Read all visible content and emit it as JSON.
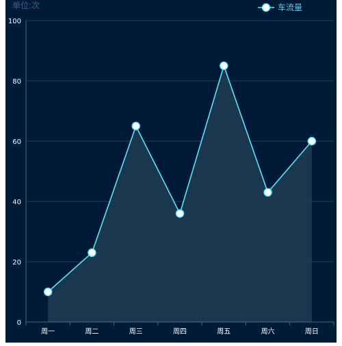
{
  "chart_data": {
    "type": "area",
    "unit_label": "单位:次",
    "categories": [
      "周一",
      "周二",
      "周三",
      "周四",
      "周五",
      "周六",
      "周日"
    ],
    "series": [
      {
        "name": "车流量",
        "values": [
          10,
          23,
          65,
          36,
          85,
          43,
          60
        ]
      }
    ],
    "ylim": [
      0,
      100
    ],
    "yticks": [
      0,
      20,
      40,
      60,
      80,
      100
    ],
    "grid": true,
    "legend": "top-right",
    "colors": {
      "background": "#001b37",
      "line": "#5ee3ff",
      "area": "#1a3a50",
      "marker_fill": "#ffffff",
      "grid": "#23405c",
      "axis": "#4a6784",
      "tick_text": "#ffffff",
      "unit_text": "#3f6184",
      "legend_text": "#58c8ee"
    }
  }
}
